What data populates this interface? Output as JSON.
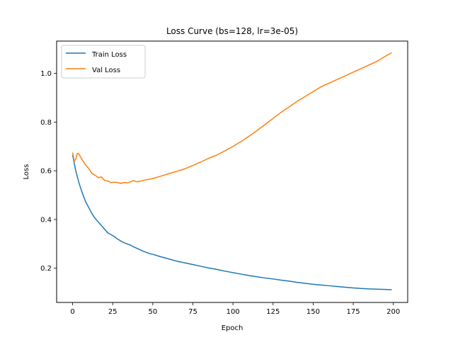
{
  "chart_data": {
    "type": "line",
    "title": "Loss Curve (bs=128, lr=3e-05)",
    "xlabel": "Epoch",
    "ylabel": "Loss",
    "xlim": [
      -9.95,
      208.95
    ],
    "ylim": [
      0.0595,
      1.1325
    ],
    "xticks": [
      0,
      25,
      50,
      75,
      100,
      125,
      150,
      175,
      200
    ],
    "yticks": [
      0.2,
      0.4,
      0.6,
      0.8,
      1.0
    ],
    "ytick_labels": [
      "0.2",
      "0.4",
      "0.6",
      "0.8",
      "1.0"
    ],
    "grid": false,
    "legend_position": "upper-left",
    "series": [
      {
        "name": "Train Loss",
        "color": "#1f77b4",
        "x": [
          0,
          2,
          4,
          6,
          8,
          10,
          12,
          14,
          16,
          18,
          20,
          22,
          24,
          26,
          28,
          30,
          32,
          34,
          36,
          38,
          40,
          42,
          44,
          46,
          48,
          50,
          55,
          60,
          65,
          70,
          75,
          80,
          85,
          90,
          95,
          100,
          105,
          110,
          115,
          120,
          125,
          130,
          135,
          140,
          145,
          150,
          155,
          160,
          165,
          170,
          175,
          180,
          185,
          190,
          195,
          199
        ],
        "y": [
          0.665,
          0.6,
          0.55,
          0.51,
          0.475,
          0.45,
          0.425,
          0.405,
          0.39,
          0.375,
          0.36,
          0.345,
          0.338,
          0.33,
          0.32,
          0.312,
          0.305,
          0.3,
          0.295,
          0.288,
          0.282,
          0.276,
          0.27,
          0.265,
          0.26,
          0.257,
          0.247,
          0.238,
          0.229,
          0.222,
          0.215,
          0.208,
          0.201,
          0.195,
          0.188,
          0.182,
          0.176,
          0.17,
          0.165,
          0.16,
          0.156,
          0.151,
          0.147,
          0.142,
          0.138,
          0.134,
          0.131,
          0.128,
          0.125,
          0.122,
          0.119,
          0.117,
          0.115,
          0.114,
          0.113,
          0.112
        ]
      },
      {
        "name": "Val Loss",
        "color": "#ff7f0e",
        "x": [
          0,
          1,
          2,
          3,
          4,
          6,
          8,
          10,
          12,
          14,
          16,
          18,
          20,
          22,
          24,
          26,
          28,
          30,
          32,
          34,
          36,
          38,
          40,
          42,
          45,
          50,
          55,
          60,
          65,
          70,
          75,
          80,
          85,
          90,
          95,
          100,
          105,
          110,
          115,
          120,
          125,
          130,
          135,
          140,
          145,
          150,
          155,
          160,
          165,
          170,
          175,
          180,
          185,
          190,
          195,
          199
        ],
        "y": [
          0.675,
          0.64,
          0.648,
          0.672,
          0.668,
          0.645,
          0.625,
          0.61,
          0.59,
          0.582,
          0.572,
          0.575,
          0.56,
          0.558,
          0.552,
          0.553,
          0.552,
          0.548,
          0.552,
          0.551,
          0.554,
          0.56,
          0.555,
          0.557,
          0.562,
          0.568,
          0.578,
          0.588,
          0.598,
          0.608,
          0.622,
          0.636,
          0.652,
          0.665,
          0.682,
          0.7,
          0.72,
          0.742,
          0.765,
          0.79,
          0.815,
          0.84,
          0.862,
          0.885,
          0.905,
          0.925,
          0.945,
          0.96,
          0.975,
          0.99,
          1.005,
          1.02,
          1.035,
          1.05,
          1.07,
          1.085
        ]
      }
    ]
  }
}
